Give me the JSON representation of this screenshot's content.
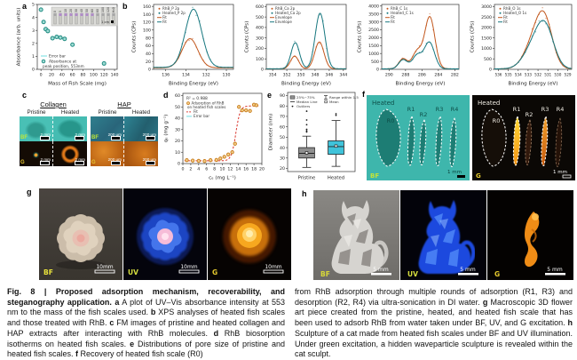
{
  "figure_label": "Fig. 8",
  "panels": {
    "a": {
      "letter": "a"
    },
    "b": {
      "letter": "b"
    },
    "c": {
      "letter": "c",
      "groups": [
        {
          "title": "Collagen",
          "cols": [
            "Pristine",
            "Heated"
          ],
          "scale": "2 mm"
        },
        {
          "title": "HAP",
          "cols": [
            "Pristine",
            "Heated"
          ],
          "scale": "200 μm"
        }
      ],
      "row_tags": [
        "BF",
        "G"
      ]
    },
    "d": {
      "letter": "d"
    },
    "e": {
      "letter": "e"
    },
    "f": {
      "letter": "f",
      "title": "Heated",
      "regions": [
        "R0",
        "R1",
        "R2",
        "R3",
        "R4"
      ],
      "scale": "1 mm",
      "tags": [
        "BF",
        "G"
      ]
    },
    "g": {
      "letter": "g",
      "images": [
        {
          "tag": "BF",
          "scale": "10mm"
        },
        {
          "tag": "UV",
          "scale": "10mm"
        },
        {
          "tag": "G",
          "scale": "10mm"
        }
      ]
    },
    "h": {
      "letter": "h",
      "images": [
        {
          "tag": "BF",
          "scale": "5 mm"
        },
        {
          "tag": "UV",
          "scale": "5 mm"
        },
        {
          "tag": "G",
          "scale": "5 mm"
        }
      ]
    }
  },
  "chart_data": [
    {
      "id": "chart-a",
      "type": "scatter",
      "xlabel": "Mass of Fish Scale (mg)",
      "ylabel": "Absorbance (arb. units)",
      "xlim": [
        -7,
        145
      ],
      "ylim": [
        0,
        5
      ],
      "xticks": [
        0,
        20,
        40,
        60,
        80,
        100,
        120,
        140
      ],
      "yticks": [
        0,
        1,
        2,
        3,
        4,
        5
      ],
      "x": [
        0,
        5,
        9,
        13,
        22,
        30,
        37,
        45,
        60,
        120
      ],
      "y": [
        4.6,
        3.65,
        3.1,
        2.95,
        2.4,
        2.5,
        2.45,
        2.35,
        1.9,
        0.45
      ],
      "error": 0.12,
      "legend": [
        "Error bar",
        "Absorbance at",
        "peak position, 553nm"
      ],
      "point_color": "#1f8a80",
      "inset": {
        "vial_labels": [
          "0",
          "5",
          "10",
          "20",
          "30",
          "40",
          "50",
          "60",
          "80",
          "100",
          "120",
          "H₂O"
        ],
        "scale": "1 cm"
      }
    },
    {
      "id": "chart-b1",
      "type": "xps",
      "xlabel": "Binding Energy (eV)",
      "ylabel": "Counts (CPs)",
      "xlim": [
        137.2,
        129.3
      ],
      "ylim": [
        0,
        165
      ],
      "xticks": [
        136,
        134,
        132,
        130
      ],
      "yticks": [
        0,
        20,
        40,
        60,
        80,
        100,
        120,
        140,
        160
      ],
      "legend": [
        "RhB_P 2p",
        "Heated_P 2p",
        "Fit",
        "Fit"
      ],
      "series": [
        {
          "name": "RhB_P 2p",
          "color": "#c2571d",
          "baseline": 4,
          "peaks": [
            [
              133.6,
              74,
              0.78
            ]
          ]
        },
        {
          "name": "Heated_P 2p",
          "color": "#17777f",
          "baseline": 5,
          "peaks": [
            [
              133.25,
              148,
              0.82
            ]
          ]
        }
      ]
    },
    {
      "id": "chart-b2",
      "type": "xps",
      "xlabel": "Binding Energy (eV)",
      "ylabel": "Counts (CPs)",
      "xlim": [
        354.9,
        343.6
      ],
      "ylim": [
        0,
        620
      ],
      "xticks": [
        354,
        352,
        350,
        348,
        346,
        344
      ],
      "yticks": [
        0,
        100,
        200,
        300,
        400,
        500,
        600
      ],
      "legend": [
        "RhB_Ca 2p",
        "Heated_Ca 2p",
        "Envelope",
        "Envelope"
      ],
      "series": [
        {
          "name": "RhB_Ca 2p",
          "color": "#c2571d",
          "baseline": 4,
          "peaks": [
            [
              350.9,
              122,
              0.58
            ],
            [
              347.4,
              258,
              0.65
            ]
          ]
        },
        {
          "name": "Heated_Ca 2p",
          "color": "#17777f",
          "baseline": 5,
          "peaks": [
            [
              350.8,
              250,
              0.6
            ],
            [
              347.3,
              532,
              0.68
            ]
          ]
        }
      ]
    },
    {
      "id": "chart-b3",
      "type": "xps",
      "xlabel": "Binding Energy (eV)",
      "ylabel": "Counts (CPs)",
      "xlim": [
        290.9,
        281.5
      ],
      "ylim": [
        0,
        4100
      ],
      "xticks": [
        290,
        288,
        286,
        284,
        282
      ],
      "yticks": [
        0,
        500,
        1000,
        1500,
        2000,
        2500,
        3000,
        3500,
        4000
      ],
      "legend": [
        "RhB_C 1s",
        "Heated_C 1s",
        "Fit",
        "Fit"
      ],
      "series": [
        {
          "name": "RhB_C 1s",
          "color": "#c2571d",
          "baseline": 30,
          "peaks": [
            [
              288.3,
              640,
              0.52
            ],
            [
              286.6,
              1080,
              0.58
            ],
            [
              285.05,
              3280,
              0.62
            ]
          ]
        },
        {
          "name": "Heated_C 1s",
          "color": "#17777f",
          "baseline": 30,
          "peaks": [
            [
              288.3,
              580,
              0.52
            ],
            [
              286.6,
              850,
              0.58
            ],
            [
              285.1,
              1680,
              0.62
            ]
          ]
        }
      ]
    },
    {
      "id": "chart-b4",
      "type": "xps",
      "xlabel": "Binding Energy (eV)",
      "ylabel": "Counts (CPs)",
      "xlim": [
        536.4,
        528.6
      ],
      "ylim": [
        0,
        3100
      ],
      "xticks": [
        536,
        535,
        534,
        533,
        532,
        531,
        530,
        529
      ],
      "yticks": [
        0,
        500,
        1000,
        1500,
        2000,
        2500,
        3000
      ],
      "legend": [
        "RhB_O 1s",
        "Heated_O 1s",
        "Fit",
        "Fit"
      ],
      "series": [
        {
          "name": "RhB_O 1s",
          "color": "#c2571d",
          "baseline": 20,
          "peaks": [
            [
              532.3,
              1350,
              1.0
            ],
            [
              531.3,
              1850,
              0.8
            ]
          ]
        },
        {
          "name": "Heated_O 1s",
          "color": "#17777f",
          "baseline": 20,
          "peaks": [
            [
              532.3,
              1150,
              1.05
            ],
            [
              531.2,
              1550,
              0.85
            ]
          ]
        }
      ]
    },
    {
      "id": "chart-d",
      "type": "scatter_fit",
      "xlabel": "cₑ (mg L⁻¹)",
      "ylabel": "qₑ (mg g⁻¹)",
      "xlim": [
        0,
        20
      ],
      "ylim": [
        0,
        62
      ],
      "xticks": [
        0,
        2,
        4,
        6,
        8,
        10,
        12,
        14,
        16,
        18,
        20
      ],
      "yticks": [
        0,
        10,
        20,
        30,
        40,
        50,
        60
      ],
      "r2": "R² = 0.988",
      "legend": [
        "Adsorption of RhB",
        "on heated fish scales",
        "Fit",
        "Error bar"
      ],
      "x": [
        1,
        2.5,
        4,
        5.5,
        7,
        8.5,
        9.5,
        10.5,
        11.5,
        12.5,
        13.2,
        14.2,
        15,
        16,
        17,
        18,
        18.6
      ],
      "y": [
        3,
        2.6,
        2.4,
        2.2,
        3,
        3.2,
        4.5,
        6,
        8,
        10,
        17.5,
        50,
        47,
        47,
        46.5,
        52,
        51.5
      ],
      "error": 1.6,
      "fit": {
        "base": 2.4,
        "amp": 48.5,
        "x0": 13.4,
        "k": 0.55
      },
      "point_color": "#d08a20",
      "fit_color": "#d9342b"
    },
    {
      "id": "chart-e",
      "type": "box",
      "ylabel": "Diameter (nm)",
      "ylim": [
        17,
        93
      ],
      "yticks": [
        20,
        30,
        40,
        50,
        60,
        70,
        80,
        90
      ],
      "legend": [
        "25%~75%",
        "Median Line",
        "Outliers",
        "Range within 1.5IQR",
        "Mean"
      ],
      "boxes": [
        {
          "label": "Pristine",
          "color": "#8f8f8f",
          "lo": 21,
          "q1": 30,
          "med": 34.5,
          "mean": 35,
          "q3": 40,
          "hi": 51,
          "outliers": [
            55,
            56,
            57.5,
            62,
            66.5,
            75
          ]
        },
        {
          "label": "Heated",
          "color": "#3fc3da",
          "lo": 22,
          "q1": 33.5,
          "med": 41,
          "mean": 41.5,
          "q3": 46.5,
          "hi": 66,
          "outliers": [
            71,
            72.5
          ]
        }
      ]
    }
  ],
  "caption": {
    "col1": [
      {
        "t": "Fig. 8 | Proposed adsorption mechanism, recoverability, and steganography application. ",
        "b": true
      },
      {
        "t": "a",
        "b": true
      },
      {
        "t": " A plot of UV–Vis absorbance intensity at 553 nm to the mass of the fish scales used. "
      },
      {
        "t": "b",
        "b": true
      },
      {
        "t": " XPS analyses of heated fish scales and those treated with RhB. "
      },
      {
        "t": "c",
        "b": true
      },
      {
        "t": " FM images of pristine and heated collagen and HAP extracts after interacting with RhB molecules. "
      },
      {
        "t": "d",
        "b": true
      },
      {
        "t": " RhB biosorption isotherms on heated fish scales. "
      },
      {
        "t": "e",
        "b": true
      },
      {
        "t": " Distributions of pore size of pristine and heated fish scales. "
      },
      {
        "t": "f",
        "b": true
      },
      {
        "t": " Recovery of heated fish scale (R0)"
      }
    ],
    "col2": [
      {
        "t": "from RhB adsorption through multiple rounds of adsorption (R1, R3) and desorption (R2, R4) via ultra-sonication in DI water. "
      },
      {
        "t": "g",
        "b": true
      },
      {
        "t": " Macroscopic 3D flower art piece created from the pristine, heated, and heated fish scale that has been used to adsorb RhB from water taken under BF, UV, and G excitation. "
      },
      {
        "t": "h",
        "b": true
      },
      {
        "t": " Sculpture of a cat made from heated fish scales under BF and UV illumination. Under green excitation, a hidden waveparticle sculpture is revealed within the cat sculpt."
      }
    ]
  }
}
